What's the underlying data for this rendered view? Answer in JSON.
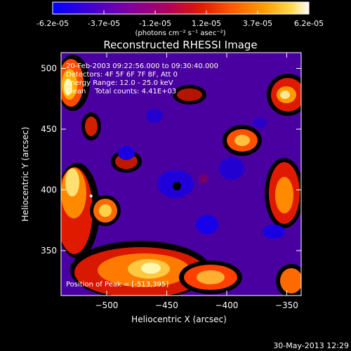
{
  "colorbar": {
    "ticks": [
      "-6.2e-05",
      "-3.7e-05",
      "-1.2e-05",
      "1.2e-05",
      "3.7e-05",
      "6.2e-05"
    ],
    "units": "(photons cm⁻² s⁻¹ asec⁻²)",
    "range": [
      -6.2e-05,
      6.2e-05
    ],
    "palette": [
      "#0000ff",
      "#3a00d8",
      "#7a00a8",
      "#b2005c",
      "#e01a00",
      "#ff5a00",
      "#ff9a00",
      "#ffd84a",
      "#ffffff"
    ]
  },
  "annotation": {
    "time_range": "20-Feb-2003 09:22:56.000 to 09:30:40.000",
    "detectors": "Detectors: 4F 5F 6F 7F 8F, Att 0",
    "energy": "Energy Range: 12.0 - 25.0 keV",
    "clean": "Clean    Total counts: 4.41E+03",
    "peak": "Position of Peak = [-513,395]"
  },
  "footer": {
    "date": "30-May-2013 12:29"
  },
  "chart_data": {
    "type": "heatmap",
    "title": "Reconstructed RHESSI Image",
    "xlabel": "Heliocentric X (arcsec)",
    "ylabel": "Heliocentric Y (arcsec)",
    "xlim": [
      -538,
      -338
    ],
    "ylim": [
      313,
      513
    ],
    "xticks": [
      -500,
      -450,
      -400,
      -350
    ],
    "yticks": [
      350,
      400,
      450,
      500
    ],
    "peak_position": [
      -513,
      395
    ]
  }
}
